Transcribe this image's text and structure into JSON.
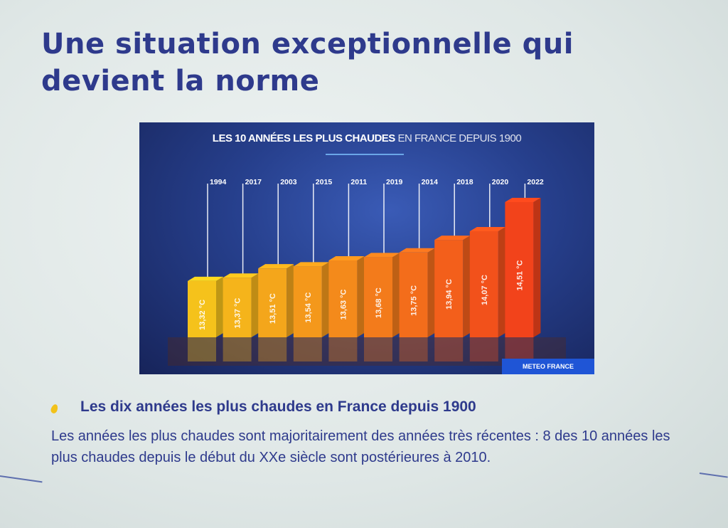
{
  "slide": {
    "title": "Une situation exceptionnelle qui devient la norme"
  },
  "chart_data": {
    "type": "bar",
    "title_bold": "LES 10 ANNÉES LES PLUS CHAUDES",
    "title_light": "EN FRANCE DEPUIS 1900",
    "categories": [
      "1994",
      "2017",
      "2003",
      "2015",
      "2011",
      "2019",
      "2014",
      "2018",
      "2020",
      "2022"
    ],
    "values": [
      13.32,
      13.37,
      13.51,
      13.54,
      13.63,
      13.68,
      13.75,
      13.94,
      14.07,
      14.51
    ],
    "value_labels": [
      "13,32 °C",
      "13,37 °C",
      "13,51 °C",
      "13,54 °C",
      "13,63 °C",
      "13,68 °C",
      "13,75 °C",
      "13,94 °C",
      "14,07 °C",
      "14,51 °C"
    ],
    "xlabel": "",
    "ylabel": "",
    "unit": "°C",
    "grid": false,
    "legend": "none",
    "source": "METEO FRANCE",
    "colors": {
      "bar_start": "#f5c21b",
      "bar_end": "#f2431b",
      "background": "#263f8c",
      "label": "#ffffff"
    }
  },
  "bullet": {
    "heading": "Les dix années les plus chaudes en France depuis 1900",
    "body": "Les années les plus chaudes sont majoritairement des années très récentes : 8 des 10 années les plus chaudes depuis le début du XXe siècle sont postérieures à 2010."
  }
}
